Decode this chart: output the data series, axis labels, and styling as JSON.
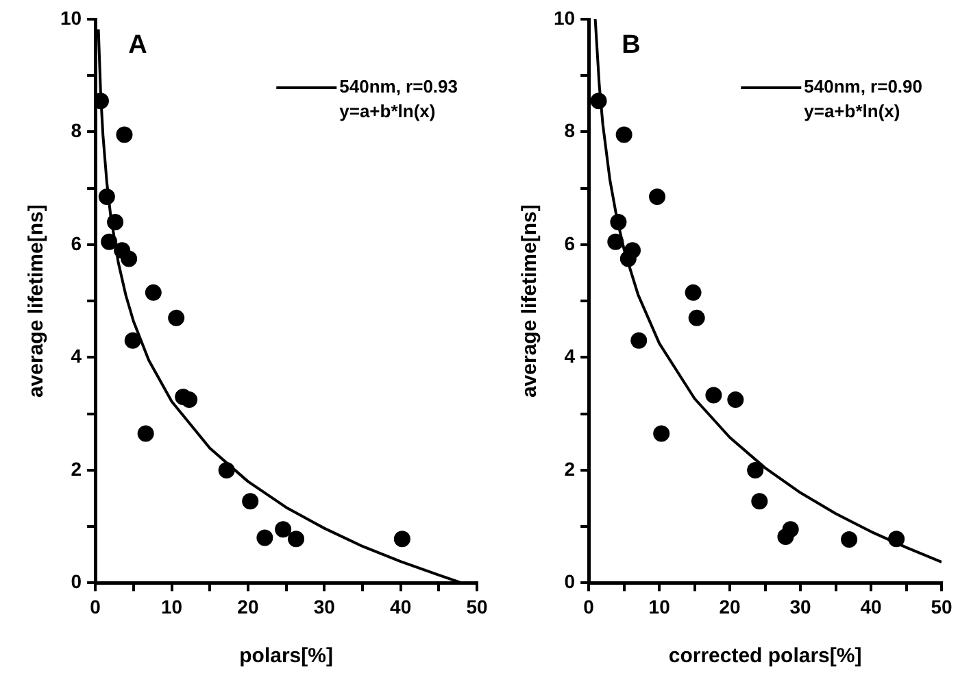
{
  "chart_data": [
    {
      "type": "scatter",
      "title": "A",
      "xlabel": "polars[%]",
      "ylabel": "average lifetime[ns]",
      "xlim": [
        0,
        50
      ],
      "xticks": [
        0,
        {
          "value": 5,
          "label": null
        },
        10,
        {
          "value": 15,
          "label": null
        },
        20,
        {
          "value": 25,
          "label": null
        },
        30,
        {
          "value": 35,
          "label": null
        },
        40,
        {
          "value": 45,
          "label": null
        },
        50
      ],
      "ylim": [
        0,
        10
      ],
      "yticks": [
        0,
        {
          "value": 1,
          "label": null
        },
        2,
        {
          "value": 3,
          "label": null
        },
        4,
        {
          "value": 5,
          "label": null
        },
        6,
        {
          "value": 7,
          "label": null
        },
        8,
        {
          "value": 9,
          "label": null
        },
        10
      ],
      "grid": false,
      "legend": "top right",
      "marker": "circle",
      "annotations": [
        "y=a+b*ln(x)"
      ],
      "series": [
        {
          "color": "#000000",
          "x": [
            0.7,
            3.8,
            1.5,
            2.6,
            1.8,
            3.5,
            4.4,
            7.6,
            10.6,
            4.9,
            11.5,
            12.3,
            6.6,
            17.2,
            20.3,
            22.2,
            24.6,
            26.3,
            40.2
          ],
          "values": [
            8.55,
            7.95,
            6.85,
            6.4,
            6.05,
            5.9,
            5.75,
            5.15,
            4.7,
            4.3,
            3.3,
            3.25,
            2.65,
            2.0,
            1.45,
            0.8,
            0.95,
            0.78,
            0.78
          ]
        },
        {
          "type": "line",
          "name": "540nm, r=0.93",
          "color": "#000000",
          "marker": "none",
          "line_style": "solid",
          "x": [
            0.4,
            0.7,
            1,
            1.5,
            2,
            3,
            4,
            5,
            7,
            10,
            15,
            20,
            25,
            30,
            35,
            40,
            45,
            48
          ],
          "values": [
            9.82,
            8.67,
            7.94,
            7.11,
            6.52,
            5.69,
            5.1,
            4.64,
            3.95,
            3.22,
            2.39,
            1.8,
            1.34,
            0.97,
            0.65,
            0.38,
            0.14,
            0.0
          ]
        }
      ]
    },
    {
      "type": "scatter",
      "title": "B",
      "xlabel": "corrected polars[%]",
      "ylabel": "average lifetime[ns]",
      "xlim": [
        0,
        50
      ],
      "xticks": [
        0,
        {
          "value": 5,
          "label": null
        },
        10,
        {
          "value": 15,
          "label": null
        },
        20,
        {
          "value": 25,
          "label": null
        },
        30,
        {
          "value": 35,
          "label": null
        },
        40,
        {
          "value": 45,
          "label": null
        },
        50
      ],
      "ylim": [
        0,
        10
      ],
      "yticks": [
        0,
        {
          "value": 1,
          "label": null
        },
        2,
        {
          "value": 3,
          "label": null
        },
        4,
        {
          "value": 5,
          "label": null
        },
        6,
        {
          "value": 7,
          "label": null
        },
        8,
        {
          "value": 9,
          "label": null
        },
        10
      ],
      "grid": false,
      "legend": "top right",
      "marker": "circle",
      "annotations": [
        "y=a+b*ln(x)"
      ],
      "series": [
        {
          "color": "#000000",
          "x": [
            1.4,
            5.0,
            9.7,
            4.2,
            3.8,
            6.2,
            5.6,
            14.8,
            15.3,
            7.1,
            17.7,
            20.8,
            10.3,
            23.6,
            24.2,
            27.9,
            28.6,
            36.9,
            43.6
          ],
          "values": [
            8.55,
            7.95,
            6.85,
            6.4,
            6.05,
            5.9,
            5.75,
            5.15,
            4.7,
            4.3,
            3.33,
            3.25,
            2.65,
            2.0,
            1.45,
            0.82,
            0.95,
            0.77,
            0.78
          ]
        },
        {
          "type": "line",
          "name": "540nm, r=0.90",
          "color": "#000000",
          "marker": "none",
          "line_style": "solid",
          "x": [
            0.92,
            1.5,
            2,
            3,
            4,
            5,
            7,
            10,
            15,
            20,
            25,
            30,
            35,
            40,
            45,
            50
          ],
          "values": [
            10.0,
            8.82,
            8.13,
            7.15,
            6.46,
            5.92,
            5.11,
            4.25,
            3.27,
            2.58,
            2.04,
            1.6,
            1.23,
            0.91,
            0.63,
            0.37
          ]
        }
      ]
    }
  ]
}
